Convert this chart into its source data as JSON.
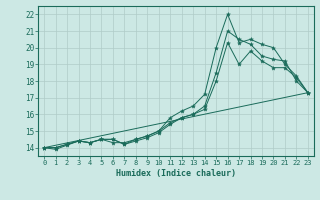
{
  "title": "",
  "xlabel": "Humidex (Indice chaleur)",
  "background_color": "#cce8e4",
  "grid_color": "#b0ccc8",
  "line_color": "#1a6b5a",
  "xlim": [
    -0.5,
    23.5
  ],
  "ylim": [
    13.5,
    22.5
  ],
  "xticks": [
    0,
    1,
    2,
    3,
    4,
    5,
    6,
    7,
    8,
    9,
    10,
    11,
    12,
    13,
    14,
    15,
    16,
    17,
    18,
    19,
    20,
    21,
    22,
    23
  ],
  "yticks": [
    14,
    15,
    16,
    17,
    18,
    19,
    20,
    21,
    22
  ],
  "series": [
    {
      "x": [
        0,
        1,
        2,
        3,
        4,
        5,
        6,
        7,
        8,
        9,
        10,
        11,
        12,
        13,
        14,
        15,
        16,
        17,
        18,
        19,
        20,
        21,
        22,
        23
      ],
      "y": [
        14,
        13.9,
        14.15,
        14.4,
        14.3,
        14.5,
        14.3,
        14.3,
        14.5,
        14.7,
        15.0,
        15.8,
        16.2,
        16.5,
        17.2,
        20.0,
        22.0,
        20.3,
        20.5,
        20.2,
        20.0,
        19.0,
        18.3,
        17.3
      ],
      "markers": true
    },
    {
      "x": [
        0,
        1,
        2,
        3,
        4,
        5,
        6,
        7,
        8,
        9,
        10,
        11,
        12,
        13,
        14,
        15,
        16,
        17,
        18,
        19,
        20,
        21,
        22,
        23
      ],
      "y": [
        14,
        14,
        14.2,
        14.4,
        14.3,
        14.5,
        14.5,
        14.2,
        14.4,
        14.6,
        14.9,
        15.4,
        15.8,
        16.0,
        16.5,
        18.5,
        21.0,
        20.5,
        20.2,
        19.5,
        19.3,
        19.2,
        18.0,
        17.3
      ],
      "markers": true
    },
    {
      "x": [
        0,
        1,
        2,
        3,
        4,
        5,
        6,
        7,
        8,
        9,
        10,
        11,
        12,
        13,
        14,
        15,
        16,
        17,
        18,
        19,
        20,
        21,
        22,
        23
      ],
      "y": [
        14,
        14,
        14.2,
        14.4,
        14.3,
        14.5,
        14.5,
        14.2,
        14.5,
        14.7,
        15.0,
        15.5,
        15.8,
        16.0,
        16.3,
        18.0,
        20.3,
        19.0,
        19.8,
        19.2,
        18.8,
        18.8,
        18.2,
        17.3
      ],
      "markers": true
    },
    {
      "x": [
        0,
        23
      ],
      "y": [
        14,
        17.3
      ],
      "markers": false
    }
  ]
}
